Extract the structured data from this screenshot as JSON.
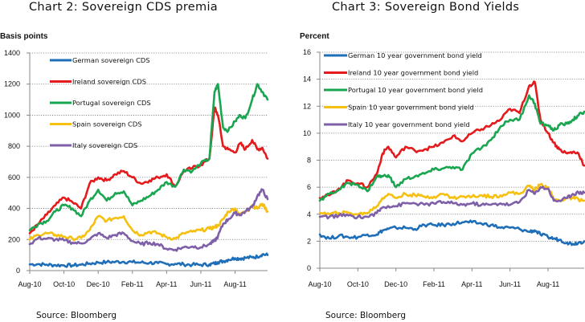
{
  "chart_data": [
    {
      "id": "cds",
      "type": "line",
      "title": "Chart 2:  Sovereign CDS premia",
      "ylabel": "Basis points",
      "xlabel": "",
      "source": "Source:  Bloomberg",
      "ylim": [
        0,
        1400
      ],
      "yticks": [
        0,
        200,
        400,
        600,
        800,
        1000,
        1200,
        1400
      ],
      "ytick_labels": [
        "0",
        "200",
        "400",
        "600",
        "800",
        "1000",
        "1200",
        "1400"
      ],
      "xlim_months": [
        0,
        13.9
      ],
      "xticks_months": [
        0,
        2,
        4,
        6,
        8,
        10,
        12
      ],
      "xtick_labels": [
        "Aug-10",
        "Oct-10",
        "Dec-10",
        "Feb-11",
        "Apr-11",
        "Jun-11",
        "Aug-11"
      ],
      "grid": true,
      "legend": "top-left",
      "x_months": [
        0,
        0.5,
        1,
        1.5,
        2,
        2.5,
        3,
        3.5,
        4,
        4.5,
        5,
        5.5,
        6,
        6.5,
        7,
        7.5,
        8,
        8.5,
        9,
        9.5,
        10,
        10.5,
        10.8,
        11,
        11.3,
        11.6,
        12,
        12.3,
        12.6,
        13,
        13.3,
        13.6,
        13.9
      ],
      "series": [
        {
          "name": "German sovereign CDS",
          "color": "#1f6fb8",
          "values": [
            40,
            42,
            38,
            35,
            34,
            33,
            38,
            45,
            52,
            55,
            56,
            57,
            55,
            52,
            50,
            48,
            42,
            44,
            40,
            38,
            37,
            40,
            45,
            55,
            60,
            70,
            80,
            78,
            82,
            85,
            90,
            105,
            100
          ]
        },
        {
          "name": "Ireland sovereign CDS",
          "color": "#e41a1c",
          "values": [
            240,
            300,
            360,
            420,
            470,
            440,
            400,
            560,
            600,
            580,
            620,
            640,
            600,
            560,
            580,
            600,
            620,
            540,
            640,
            660,
            680,
            720,
            1050,
            1000,
            800,
            780,
            760,
            820,
            780,
            840,
            780,
            790,
            720
          ]
        },
        {
          "name": "Portugal sovereign CDS",
          "color": "#1aa550",
          "values": [
            260,
            300,
            320,
            380,
            420,
            400,
            350,
            450,
            520,
            450,
            500,
            510,
            420,
            450,
            480,
            520,
            570,
            540,
            650,
            640,
            690,
            720,
            1150,
            1200,
            920,
            900,
            960,
            1000,
            980,
            1100,
            1200,
            1150,
            1100
          ]
        },
        {
          "name": "Spain sovereign CDS",
          "color": "#f5c010",
          "values": [
            200,
            230,
            240,
            230,
            220,
            205,
            210,
            260,
            350,
            320,
            340,
            350,
            260,
            230,
            250,
            240,
            215,
            205,
            240,
            250,
            260,
            270,
            280,
            290,
            330,
            380,
            400,
            360,
            380,
            420,
            400,
            430,
            380
          ]
        },
        {
          "name": "Italy sovereign CDS",
          "color": "#7e5fa8",
          "values": [
            170,
            210,
            205,
            200,
            195,
            180,
            175,
            200,
            240,
            210,
            230,
            240,
            190,
            170,
            180,
            170,
            140,
            135,
            150,
            155,
            150,
            170,
            190,
            220,
            300,
            330,
            370,
            360,
            380,
            410,
            480,
            520,
            460
          ]
        }
      ]
    },
    {
      "id": "yields",
      "type": "line",
      "title": "Chart 3:  Sovereign Bond Yields",
      "ylabel": "Percent",
      "xlabel": "",
      "source": "Source:  Bloomberg",
      "ylim": [
        0,
        16
      ],
      "yticks": [
        0,
        2,
        4,
        6,
        8,
        10,
        12,
        14,
        16
      ],
      "ytick_labels": [
        "0",
        "2",
        "4",
        "6",
        "8",
        "10",
        "12",
        "14",
        "16"
      ],
      "xlim_months": [
        0,
        13.9
      ],
      "xticks_months": [
        0,
        2,
        4,
        6,
        8,
        10,
        12
      ],
      "xtick_labels": [
        "Aug-10",
        "Oct-10",
        "Dec-10",
        "Feb-11",
        "Apr-11",
        "Jun-11",
        "Aug-11"
      ],
      "grid": true,
      "legend": "top-left",
      "x_months": [
        0,
        0.5,
        1,
        1.5,
        2,
        2.5,
        3,
        3.3,
        3.6,
        4,
        4.5,
        5,
        5.5,
        6,
        6.5,
        7,
        7.5,
        8,
        8.5,
        9,
        9.5,
        10,
        10.5,
        11,
        11.3,
        11.6,
        12,
        12.3,
        12.6,
        13,
        13.3,
        13.6,
        13.9
      ],
      "series": [
        {
          "name": "German 10 year government bond yield",
          "color": "#1f6fb8",
          "values": [
            2.5,
            2.2,
            2.4,
            2.3,
            2.3,
            2.5,
            2.5,
            2.8,
            2.9,
            3.0,
            3.0,
            2.9,
            3.2,
            3.2,
            3.2,
            3.3,
            3.4,
            3.4,
            3.3,
            3.2,
            3.0,
            3.0,
            2.9,
            2.7,
            2.8,
            2.5,
            2.3,
            2.2,
            2.1,
            1.9,
            1.8,
            1.9,
            2.0
          ]
        },
        {
          "name": "Ireland 10 year government bond yield",
          "color": "#e41a1c",
          "values": [
            5.2,
            5.4,
            5.9,
            6.5,
            6.3,
            6.0,
            7.0,
            8.5,
            9.0,
            8.2,
            9.0,
            8.7,
            8.8,
            9.0,
            9.3,
            9.8,
            9.4,
            10.0,
            10.3,
            10.6,
            11.0,
            11.8,
            11.5,
            13.5,
            13.8,
            11.0,
            10.0,
            9.3,
            8.8,
            8.5,
            8.6,
            8.5,
            7.6
          ]
        },
        {
          "name": "Portugal 10 year government bond yield",
          "color": "#1aa550",
          "values": [
            5.0,
            5.5,
            5.8,
            6.3,
            6.2,
            5.7,
            6.8,
            6.8,
            6.9,
            6.0,
            6.6,
            6.8,
            7.0,
            7.3,
            7.4,
            7.5,
            7.3,
            8.5,
            8.9,
            9.5,
            10.5,
            11.0,
            11.0,
            12.8,
            12.2,
            10.7,
            10.6,
            10.2,
            10.6,
            10.7,
            11.0,
            11.3,
            11.6
          ]
        },
        {
          "name": "Spain 10 year government bond yield",
          "color": "#f5c010",
          "values": [
            4.1,
            4.0,
            4.1,
            4.1,
            4.0,
            4.1,
            4.6,
            5.2,
            5.5,
            5.2,
            5.5,
            5.4,
            5.3,
            5.3,
            5.5,
            5.2,
            5.3,
            5.3,
            5.4,
            5.3,
            5.4,
            5.6,
            5.5,
            6.1,
            5.8,
            6.2,
            6.0,
            5.1,
            5.0,
            5.2,
            5.2,
            5.1,
            5.0
          ]
        },
        {
          "name": "Italy 10 year government bond yield",
          "color": "#7e5fa8",
          "values": [
            3.8,
            3.8,
            3.9,
            3.9,
            3.8,
            3.8,
            4.1,
            4.5,
            4.6,
            4.6,
            4.8,
            4.8,
            4.7,
            4.8,
            4.9,
            4.8,
            4.7,
            4.8,
            4.7,
            4.7,
            4.8,
            4.7,
            4.9,
            5.8,
            5.5,
            6.0,
            5.9,
            5.0,
            5.0,
            5.2,
            5.5,
            5.6,
            5.6
          ]
        }
      ]
    }
  ]
}
